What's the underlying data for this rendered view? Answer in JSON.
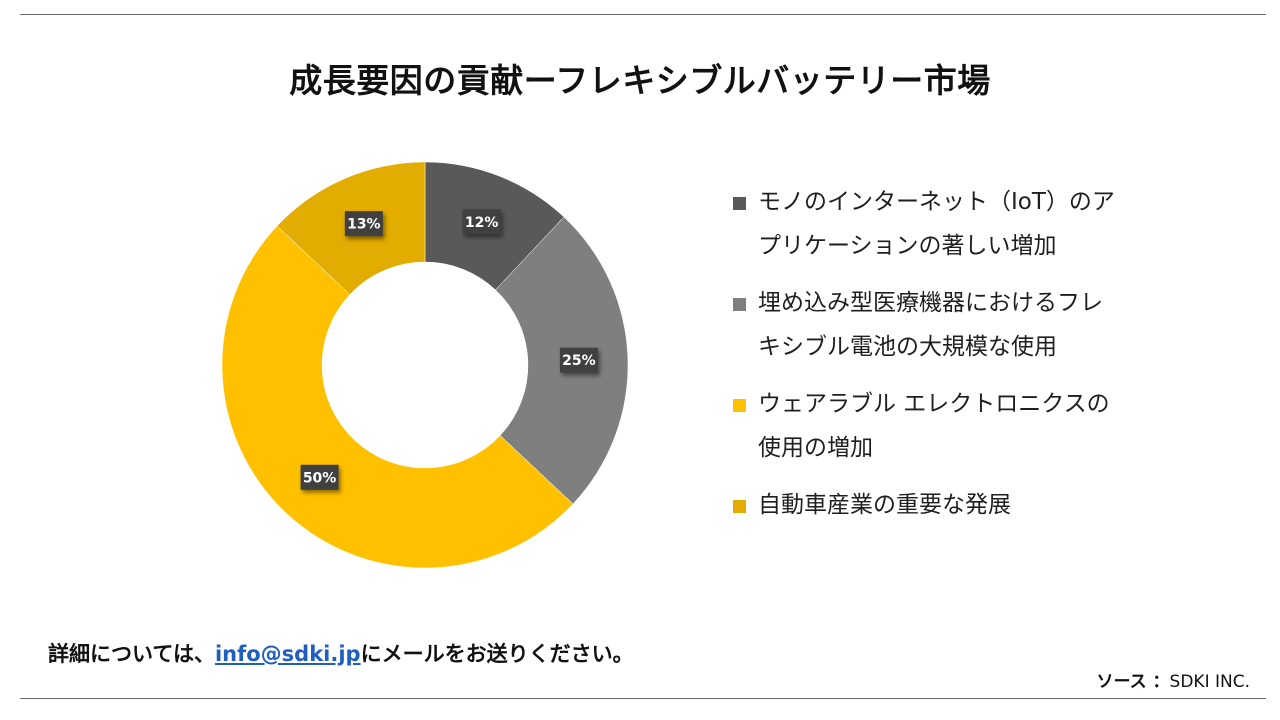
{
  "title": "成長要因の貢献ーフレキシブルバッテリー市場",
  "chart_data": {
    "type": "pie",
    "donut": true,
    "slices": [
      {
        "label": "モノのインターネット（IoT）のアプリケーションの著しい増加",
        "value": 12,
        "display": "12%",
        "color": "#595959"
      },
      {
        "label": "埋め込み型医療機器におけるフレキシブル電池の大規模な使用",
        "value": 25,
        "display": "25%",
        "color": "#7f7f7f"
      },
      {
        "label": "ウェアラブル エレクトロニクスの使用の増加",
        "value": 50,
        "display": "50%",
        "color": "#ffc000"
      },
      {
        "label": "自動車産業の重要な発展",
        "value": 13,
        "display": "13%",
        "color": "#e2ac00"
      }
    ],
    "legend_position": "right"
  },
  "legend": {
    "items": [
      {
        "lines": [
          "モノのインターネット（IoT）のア",
          "プリケーションの著しい増加"
        ],
        "color": "#595959"
      },
      {
        "lines": [
          "埋め込み型医療機器におけるフレ",
          "キシブル電池の大規模な使用"
        ],
        "color": "#7f7f7f"
      },
      {
        "lines": [
          "ウェアラブル エレクトロニクスの",
          "使用の増加"
        ],
        "color": "#ffc000"
      },
      {
        "lines": [
          "自動車産業の重要な発展"
        ],
        "color": "#e2ac00"
      }
    ]
  },
  "footer": {
    "prefix": "詳細については、",
    "email": "info@sdki.jp",
    "suffix": "にメールをお送りください。"
  },
  "source": {
    "label": "ソース ：",
    "value": "SDKI INC."
  }
}
